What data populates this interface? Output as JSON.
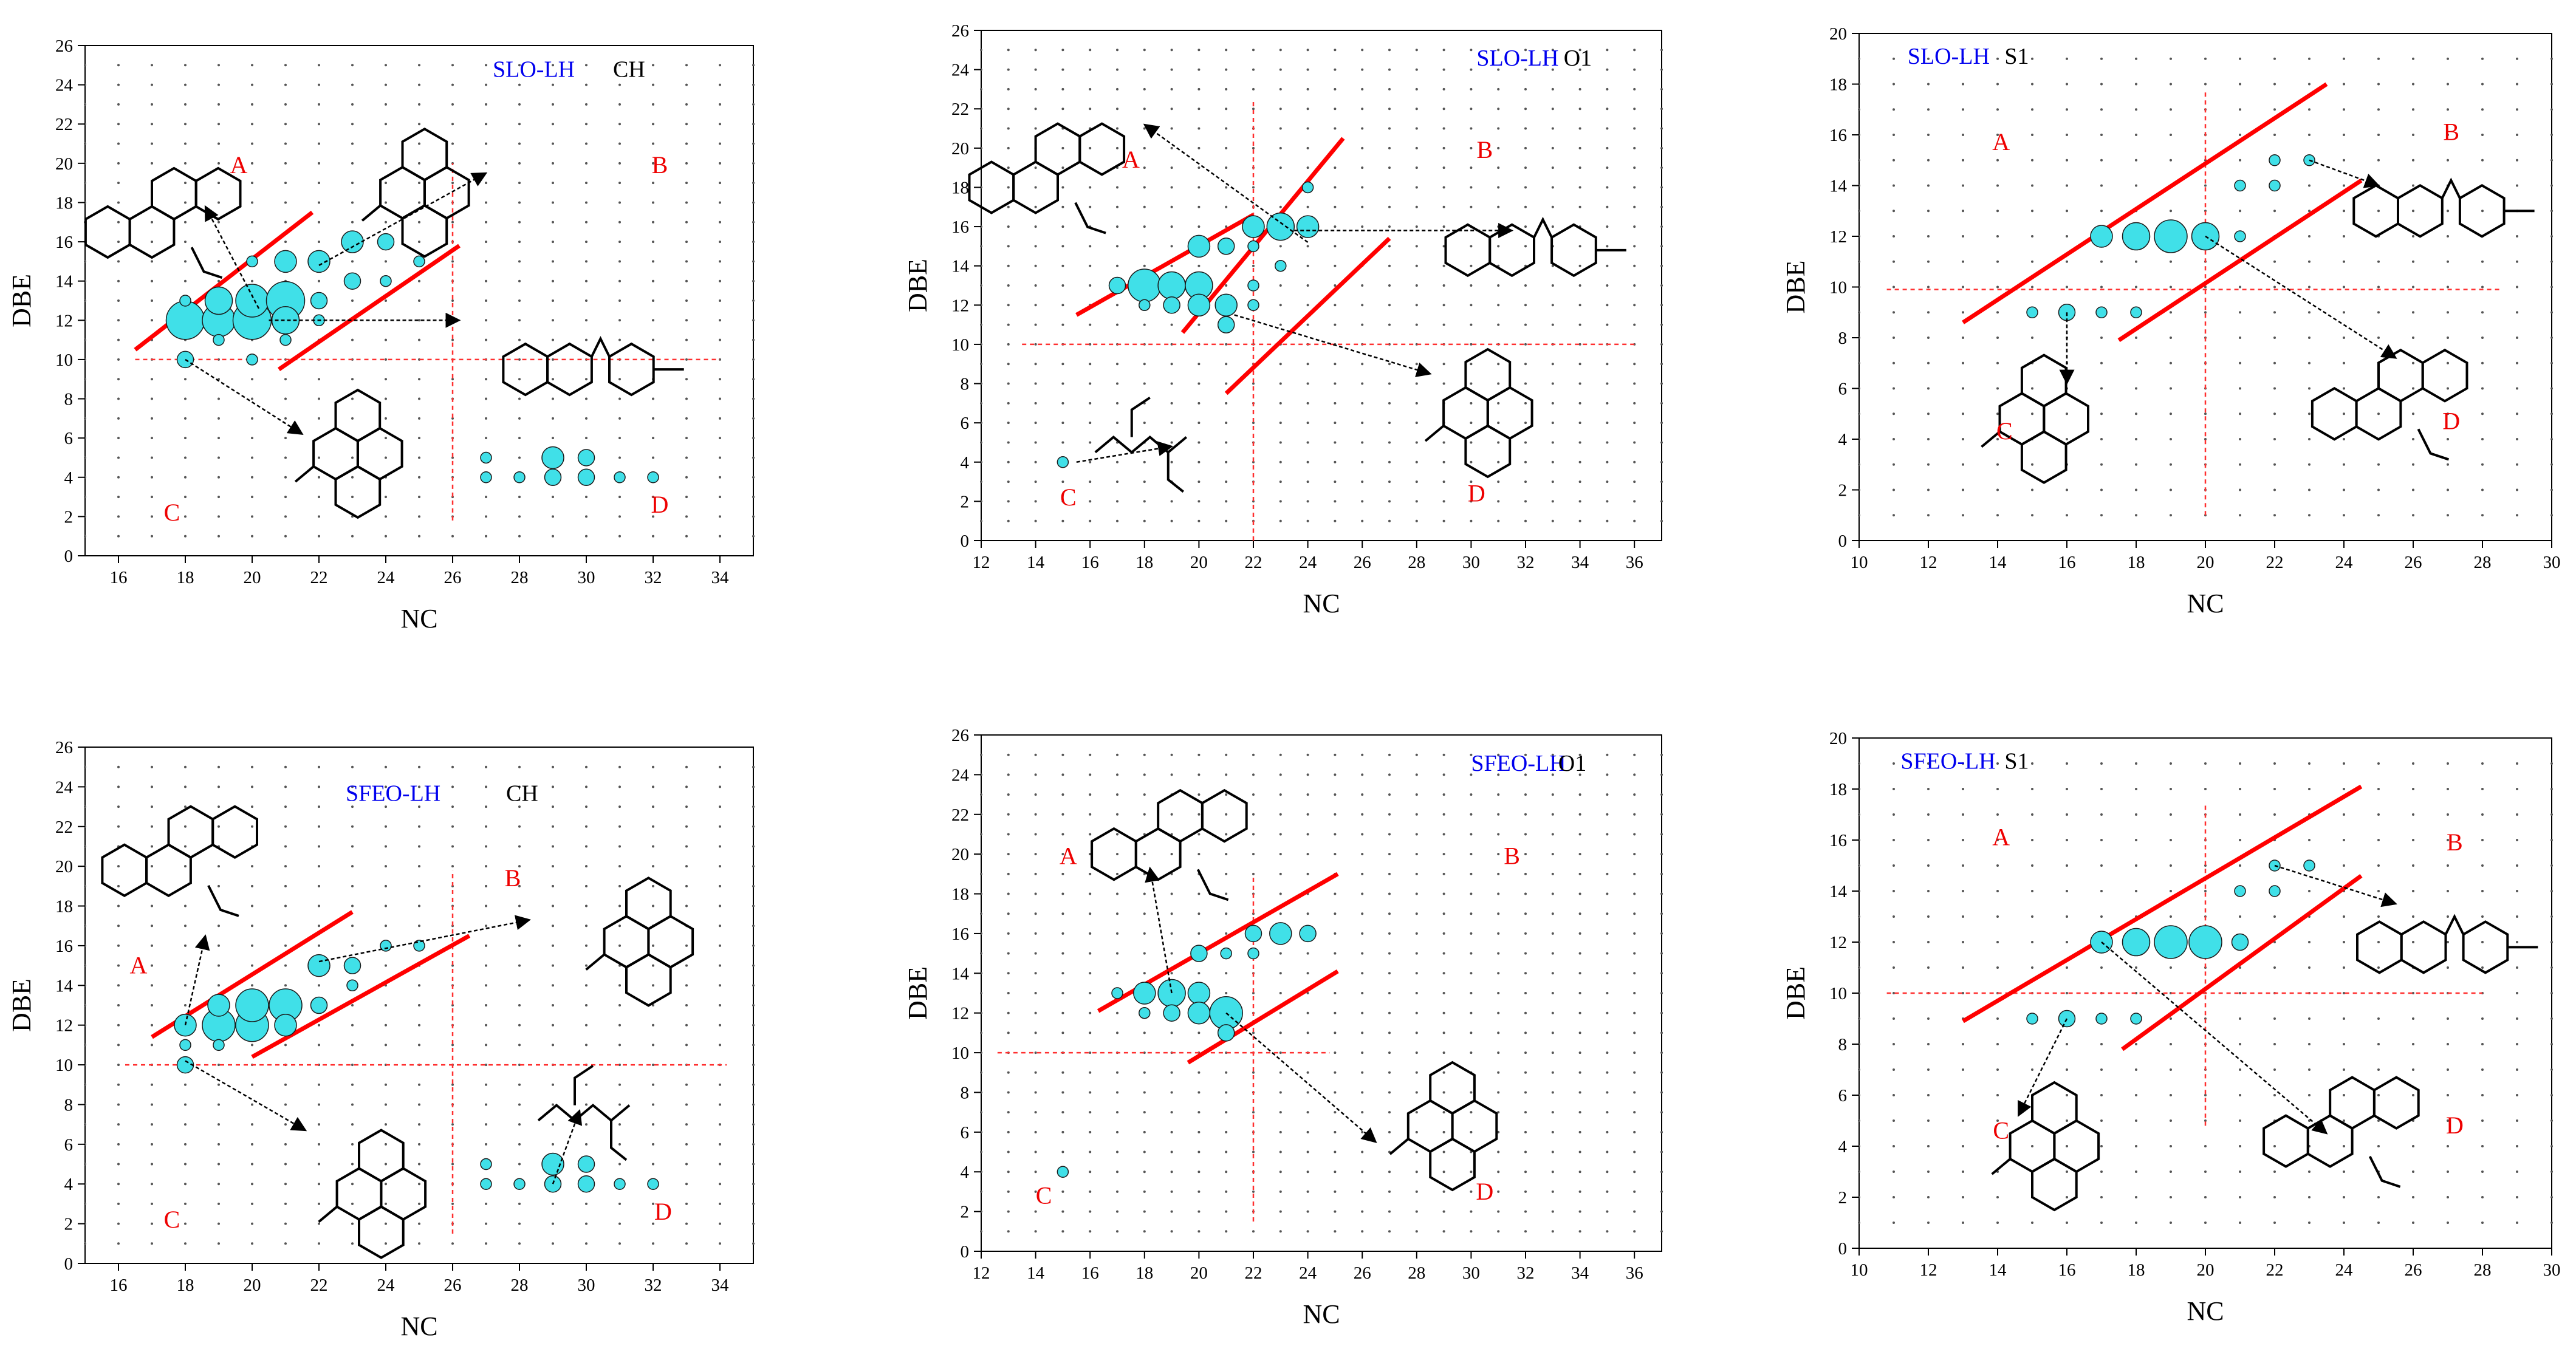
{
  "colors": {
    "bubble_fill": "#40e0e8",
    "bubble_stroke": "#1a1a1a",
    "trend_line": "#ff0000",
    "divider_line": "#ff3030",
    "region_label": "#ee0000",
    "series_label": "#0000ee",
    "class_label": "#000000",
    "axis": "#000000",
    "structure": "#000000",
    "oxygen": "#ee2200",
    "sulfur": "#d4a000"
  },
  "chart_data": [
    {
      "id": "slo-ch",
      "type": "scatter",
      "series_label": "SLO-LH",
      "class_label": "CH",
      "xlabel": "NC",
      "ylabel": "DBE",
      "xlim": [
        15,
        35
      ],
      "ylim": [
        0,
        26
      ],
      "xticks": [
        16,
        18,
        20,
        22,
        24,
        26,
        28,
        30,
        32,
        34
      ],
      "yticks": [
        0,
        2,
        4,
        6,
        8,
        10,
        12,
        14,
        16,
        18,
        20,
        22,
        24,
        26
      ],
      "regions": [
        "A",
        "B",
        "C",
        "D"
      ],
      "dividers": {
        "x": 26,
        "y": 10
      },
      "points": [
        [
          18,
          12,
          7
        ],
        [
          19,
          12,
          6
        ],
        [
          19,
          13,
          5
        ],
        [
          20,
          12,
          7
        ],
        [
          20,
          13,
          6
        ],
        [
          21,
          13,
          7
        ],
        [
          21,
          12,
          5
        ],
        [
          21,
          15,
          4
        ],
        [
          22,
          15,
          4
        ],
        [
          22,
          13,
          3
        ],
        [
          23,
          16,
          4
        ],
        [
          23,
          14,
          3
        ],
        [
          22,
          12,
          2
        ],
        [
          24,
          16,
          3
        ],
        [
          24,
          14,
          2
        ],
        [
          25,
          15,
          2
        ],
        [
          18,
          10,
          3
        ],
        [
          18,
          13,
          2
        ],
        [
          20,
          15,
          2
        ],
        [
          19,
          11,
          2
        ],
        [
          20,
          10,
          2
        ],
        [
          21,
          11,
          2
        ],
        [
          29,
          5,
          4
        ],
        [
          29,
          4,
          3
        ],
        [
          30,
          5,
          3
        ],
        [
          30,
          4,
          3
        ],
        [
          27,
          5,
          2
        ],
        [
          27,
          4,
          2
        ],
        [
          28,
          4,
          2
        ],
        [
          31,
          4,
          2
        ],
        [
          32,
          4,
          2
        ]
      ]
    },
    {
      "id": "slo-o1",
      "type": "scatter",
      "series_label": "SLO-LH",
      "class_label": "O1",
      "xlabel": "NC",
      "ylabel": "DBE",
      "xlim": [
        12,
        37
      ],
      "ylim": [
        0,
        26
      ],
      "xticks": [
        12,
        14,
        16,
        18,
        20,
        22,
        24,
        26,
        28,
        30,
        32,
        34,
        36
      ],
      "yticks": [
        0,
        2,
        4,
        6,
        8,
        10,
        12,
        14,
        16,
        18,
        20,
        22,
        24,
        26
      ],
      "regions": [
        "A",
        "B",
        "C",
        "D"
      ],
      "dividers": {
        "x": 22,
        "y": 10
      },
      "points": [
        [
          18,
          13,
          6
        ],
        [
          19,
          13,
          5
        ],
        [
          20,
          13,
          5
        ],
        [
          21,
          12,
          4
        ],
        [
          20,
          12,
          4
        ],
        [
          19,
          12,
          3
        ],
        [
          21,
          11,
          3
        ],
        [
          22,
          16,
          4
        ],
        [
          23,
          16,
          5
        ],
        [
          24,
          16,
          4
        ],
        [
          20,
          15,
          4
        ],
        [
          21,
          15,
          3
        ],
        [
          22,
          15,
          2
        ],
        [
          17,
          13,
          3
        ],
        [
          18,
          12,
          2
        ],
        [
          15,
          4,
          2
        ],
        [
          22,
          12,
          2
        ],
        [
          22,
          13,
          2
        ],
        [
          23,
          14,
          2
        ],
        [
          24,
          18,
          2
        ]
      ]
    },
    {
      "id": "slo-s1",
      "type": "scatter",
      "series_label": "SLO-LH",
      "class_label": "S1",
      "xlabel": "NC",
      "ylabel": "DBE",
      "xlim": [
        10,
        30
      ],
      "ylim": [
        0,
        20
      ],
      "xticks": [
        10,
        12,
        14,
        16,
        18,
        20,
        22,
        24,
        26,
        28,
        30
      ],
      "yticks": [
        0,
        2,
        4,
        6,
        8,
        10,
        12,
        14,
        16,
        18,
        20
      ],
      "regions": [
        "A",
        "B",
        "C",
        "D"
      ],
      "dividers": {
        "x": 20,
        "y": 10
      },
      "points": [
        [
          17,
          12,
          4
        ],
        [
          18,
          12,
          5
        ],
        [
          19,
          12,
          6
        ],
        [
          20,
          12,
          5
        ],
        [
          21,
          12,
          2
        ],
        [
          16,
          9,
          3
        ],
        [
          15,
          9,
          2
        ],
        [
          17,
          9,
          2
        ],
        [
          18,
          9,
          2
        ],
        [
          21,
          14,
          2
        ],
        [
          22,
          15,
          2
        ],
        [
          23,
          15,
          2
        ],
        [
          22,
          14,
          2
        ]
      ]
    },
    {
      "id": "sfeo-ch",
      "type": "scatter",
      "series_label": "SFEO-LH",
      "class_label": "CH",
      "xlabel": "NC",
      "ylabel": "DBE",
      "xlim": [
        15,
        35
      ],
      "ylim": [
        0,
        26
      ],
      "xticks": [
        16,
        18,
        20,
        22,
        24,
        26,
        28,
        30,
        32,
        34
      ],
      "yticks": [
        0,
        2,
        4,
        6,
        8,
        10,
        12,
        14,
        16,
        18,
        20,
        22,
        24,
        26
      ],
      "regions": [
        "A",
        "B",
        "C",
        "D"
      ],
      "dividers": {
        "x": 26,
        "y": 10
      },
      "points": [
        [
          18,
          12,
          4
        ],
        [
          19,
          12,
          6
        ],
        [
          19,
          13,
          4
        ],
        [
          20,
          12,
          6
        ],
        [
          20,
          13,
          6
        ],
        [
          21,
          13,
          6
        ],
        [
          21,
          12,
          4
        ],
        [
          22,
          15,
          4
        ],
        [
          22,
          13,
          3
        ],
        [
          23,
          15,
          3
        ],
        [
          23,
          14,
          2
        ],
        [
          24,
          16,
          2
        ],
        [
          25,
          16,
          2
        ],
        [
          18,
          10,
          3
        ],
        [
          18,
          11,
          2
        ],
        [
          19,
          11,
          2
        ],
        [
          29,
          5,
          4
        ],
        [
          29,
          4,
          3
        ],
        [
          30,
          5,
          3
        ],
        [
          30,
          4,
          3
        ],
        [
          27,
          5,
          2
        ],
        [
          27,
          4,
          2
        ],
        [
          28,
          4,
          2
        ],
        [
          31,
          4,
          2
        ],
        [
          32,
          4,
          2
        ]
      ]
    },
    {
      "id": "sfeo-o1",
      "type": "scatter",
      "series_label": "SFEO-LH",
      "class_label": "O1",
      "xlabel": "NC",
      "ylabel": "DBE",
      "xlim": [
        12,
        37
      ],
      "ylim": [
        0,
        26
      ],
      "xticks": [
        12,
        14,
        16,
        18,
        20,
        22,
        24,
        26,
        28,
        30,
        32,
        34,
        36
      ],
      "yticks": [
        0,
        2,
        4,
        6,
        8,
        10,
        12,
        14,
        16,
        18,
        20,
        22,
        24,
        26
      ],
      "regions": [
        "A",
        "B",
        "C",
        "D"
      ],
      "dividers": {
        "x": 22,
        "y": 10
      },
      "points": [
        [
          18,
          13,
          4
        ],
        [
          19,
          13,
          5
        ],
        [
          20,
          13,
          4
        ],
        [
          21,
          12,
          6
        ],
        [
          20,
          12,
          4
        ],
        [
          19,
          12,
          3
        ],
        [
          21,
          11,
          3
        ],
        [
          22,
          16,
          3
        ],
        [
          23,
          16,
          4
        ],
        [
          24,
          16,
          3
        ],
        [
          20,
          15,
          3
        ],
        [
          21,
          15,
          2
        ],
        [
          22,
          15,
          2
        ],
        [
          17,
          13,
          2
        ],
        [
          18,
          12,
          2
        ],
        [
          15,
          4,
          2
        ]
      ]
    },
    {
      "id": "sfeo-s1",
      "type": "scatter",
      "series_label": "SFEO-LH",
      "class_label": "S1",
      "xlabel": "NC",
      "ylabel": "DBE",
      "xlim": [
        10,
        30
      ],
      "ylim": [
        0,
        20
      ],
      "xticks": [
        10,
        12,
        14,
        16,
        18,
        20,
        22,
        24,
        26,
        28,
        30
      ],
      "yticks": [
        0,
        2,
        4,
        6,
        8,
        10,
        12,
        14,
        16,
        18,
        20
      ],
      "regions": [
        "A",
        "B",
        "C",
        "D"
      ],
      "dividers": {
        "x": 20,
        "y": 10
      },
      "points": [
        [
          17,
          12,
          4
        ],
        [
          18,
          12,
          5
        ],
        [
          19,
          12,
          6
        ],
        [
          20,
          12,
          6
        ],
        [
          21,
          12,
          3
        ],
        [
          16,
          9,
          3
        ],
        [
          15,
          9,
          2
        ],
        [
          17,
          9,
          2
        ],
        [
          18,
          9,
          2
        ],
        [
          21,
          14,
          2
        ],
        [
          22,
          15,
          2
        ],
        [
          23,
          15,
          2
        ],
        [
          22,
          14,
          2
        ]
      ]
    }
  ]
}
